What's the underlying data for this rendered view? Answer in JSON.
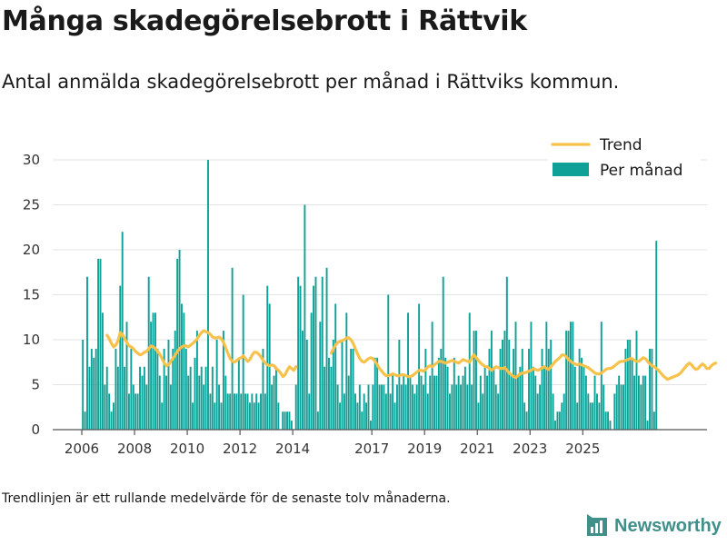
{
  "title": "Många skadegörelsebrott i Rättvik",
  "subtitle": "Antal anmälda skadegörelsebrott per månad i Rättviks kommun.",
  "footnote": "Trendlinjen är ett rullande medelvärde för de senaste tolv månaderna.",
  "brand": {
    "name": "Newsworthy",
    "icon": "newsworthy-logo-icon"
  },
  "colors": {
    "bars": "#0fa197",
    "trend": "#f7c14a",
    "grid": "#e3e3e3",
    "axis": "#555555"
  },
  "chart_data": {
    "type": "bar",
    "x_start": "2006-01",
    "ylim": [
      0,
      30
    ],
    "yticks": [
      0,
      5,
      10,
      15,
      20,
      25,
      30
    ],
    "xticks": [
      {
        "label": "2006",
        "date": "2006-01"
      },
      {
        "label": "2008",
        "date": "2008-01"
      },
      {
        "label": "2010",
        "date": "2010-01"
      },
      {
        "label": "2012",
        "date": "2012-01"
      },
      {
        "label": "2014",
        "date": "2014-01"
      },
      {
        "label": "2017",
        "date": "2017-01"
      },
      {
        "label": "2019",
        "date": "2019-01"
      },
      {
        "label": "2021",
        "date": "2021-01"
      },
      {
        "label": "2023",
        "date": "2023-01"
      },
      {
        "label": "2025",
        "date": "2025-01"
      }
    ],
    "grid": true,
    "legend": {
      "position": "top-right",
      "trend_label": "Trend",
      "bars_label": "Per månad"
    },
    "series": [
      {
        "name": "Per månad",
        "type": "bar",
        "values": [
          10,
          2,
          17,
          7,
          9,
          8,
          9,
          19,
          19,
          13,
          5,
          7,
          4,
          2,
          3,
          9,
          7,
          16,
          22,
          7,
          12,
          4,
          9,
          5,
          4,
          4,
          7,
          6,
          7,
          5,
          17,
          12,
          13,
          13,
          9,
          6,
          3,
          9,
          6,
          10,
          5,
          9,
          11,
          19,
          20,
          14,
          13,
          9,
          6,
          7,
          3,
          8,
          11,
          6,
          7,
          5,
          7,
          30,
          4,
          7,
          3,
          10,
          5,
          3,
          11,
          6,
          4,
          4,
          18,
          4,
          4,
          8,
          4,
          15,
          4,
          4,
          3,
          4,
          3,
          4,
          3,
          4,
          9,
          4,
          16,
          14,
          5,
          6,
          7,
          3,
          0,
          2,
          2,
          2,
          2,
          1,
          0,
          5,
          17,
          16,
          11,
          25,
          10,
          4,
          13,
          16,
          17,
          2,
          12,
          17,
          7,
          18,
          8,
          7,
          10,
          14,
          5,
          3,
          10,
          4,
          13,
          6,
          9,
          9,
          4,
          3,
          5,
          2,
          4,
          3,
          5,
          1,
          5,
          8,
          8,
          5,
          5,
          5,
          4,
          15,
          4,
          6,
          3,
          5,
          10,
          5,
          6,
          5,
          13,
          6,
          5,
          4,
          5,
          14,
          6,
          5,
          9,
          4,
          6,
          12,
          6,
          6,
          8,
          9,
          17,
          8,
          7,
          4,
          5,
          8,
          5,
          6,
          5,
          6,
          7,
          5,
          13,
          5,
          11,
          11,
          3,
          6,
          4,
          7,
          6,
          9,
          11,
          7,
          5,
          4,
          9,
          10,
          11,
          17,
          10,
          6,
          9,
          12,
          6,
          7,
          9,
          3,
          2,
          9,
          12,
          7,
          6,
          4,
          5,
          9,
          7,
          12,
          9,
          10,
          4,
          1,
          2,
          2,
          3,
          4,
          11,
          11,
          12,
          12,
          7,
          3,
          9,
          8,
          7,
          6,
          4,
          3,
          3,
          6,
          4,
          3,
          12,
          5,
          2,
          2,
          1,
          0,
          4,
          5,
          6,
          5,
          5,
          9,
          10,
          10,
          8,
          6,
          11,
          6,
          5,
          6,
          6,
          1,
          9,
          9,
          2,
          21
        ]
      },
      {
        "name": "Trend",
        "type": "line",
        "start": "2006-12",
        "values": [
          10.5,
          10.1,
          9.6,
          9.2,
          9.4,
          9.9,
          10.8,
          10.6,
          10.1,
          9.7,
          9.3,
          9.2,
          9.0,
          8.7,
          8.5,
          8.3,
          8.4,
          8.6,
          8.7,
          9.0,
          9.3,
          9.2,
          9.0,
          8.7,
          8.4,
          7.9,
          7.4,
          7.1,
          7.2,
          7.6,
          7.9,
          8.3,
          8.7,
          9.0,
          9.2,
          9.3,
          9.3,
          9.2,
          9.4,
          9.6,
          9.8,
          10.1,
          10.5,
          10.8,
          11.0,
          10.9,
          10.8,
          10.6,
          10.3,
          10.2,
          10.2,
          10.3,
          10.1,
          9.7,
          9.1,
          8.5,
          7.9,
          7.6,
          7.5,
          7.7,
          7.9,
          8.0,
          8.2,
          7.9,
          7.6,
          7.8,
          8.3,
          8.6,
          8.6,
          8.4,
          8.1,
          7.7,
          7.4,
          7.2,
          7.1,
          7.2,
          7.1,
          6.8,
          6.6,
          6.3,
          5.9,
          6.1,
          6.6,
          7.0,
          6.8,
          6.6,
          7.0,
          null,
          null,
          null,
          null,
          null,
          null,
          null,
          null,
          null,
          null,
          null,
          null,
          null,
          null,
          null,
          8.5,
          9.0,
          9.4,
          9.7,
          9.8,
          9.9,
          10.0,
          10.2,
          10.2,
          10.0,
          9.6,
          9.0,
          8.4,
          7.9,
          7.6,
          7.5,
          7.7,
          7.9,
          8.0,
          7.9,
          7.6,
          7.2,
          6.8,
          6.5,
          6.2,
          6.0,
          6.0,
          6.1,
          6.2,
          6.1,
          6.0,
          6.0,
          6.1,
          6.1,
          6.0,
          5.9,
          5.9,
          6.0,
          6.2,
          6.4,
          6.6,
          6.6,
          6.5,
          6.7,
          7.0,
          7.1,
          7.0,
          7.2,
          7.4,
          7.6,
          7.6,
          7.5,
          7.4,
          7.5,
          7.6,
          7.7,
          7.6,
          7.5,
          7.4,
          7.6,
          7.8,
          7.7,
          7.6,
          7.5,
          8.0,
          8.3,
          8.0,
          7.7,
          7.4,
          7.2,
          7.0,
          7.0,
          6.8,
          6.6,
          6.8,
          7.0,
          6.9,
          6.8,
          6.8,
          6.9,
          6.6,
          6.3,
          6.1,
          5.9,
          5.8,
          6.0,
          6.2,
          6.3,
          6.3,
          6.4,
          6.5,
          6.6,
          6.8,
          6.7,
          6.6,
          6.7,
          6.9,
          7.0,
          6.8,
          6.7,
          7.0,
          7.3,
          7.6,
          7.8,
          8.0,
          8.3,
          8.3,
          8.1,
          7.8,
          7.6,
          7.4,
          7.3,
          7.2,
          7.3,
          7.2,
          7.1,
          7.0,
          6.9,
          6.7,
          6.5,
          6.3,
          6.2,
          6.2,
          6.3,
          6.5,
          6.7,
          6.8,
          6.8,
          6.9,
          7.1,
          7.3,
          7.5,
          7.6,
          7.6,
          7.7,
          7.8,
          7.9,
          7.9,
          7.7,
          7.6,
          7.6,
          7.8,
          8.0,
          7.9,
          7.6,
          7.3,
          7.1,
          7.0,
          6.8,
          6.6,
          6.3,
          6.0,
          5.8,
          5.6,
          5.7,
          5.8,
          5.9,
          6.0,
          6.1,
          6.3,
          6.6,
          6.9,
          7.2,
          7.4,
          7.2,
          6.9,
          6.7,
          6.8,
          7.1,
          7.3,
          7.1,
          6.8,
          6.8,
          7.1,
          7.3,
          7.4
        ]
      }
    ]
  }
}
